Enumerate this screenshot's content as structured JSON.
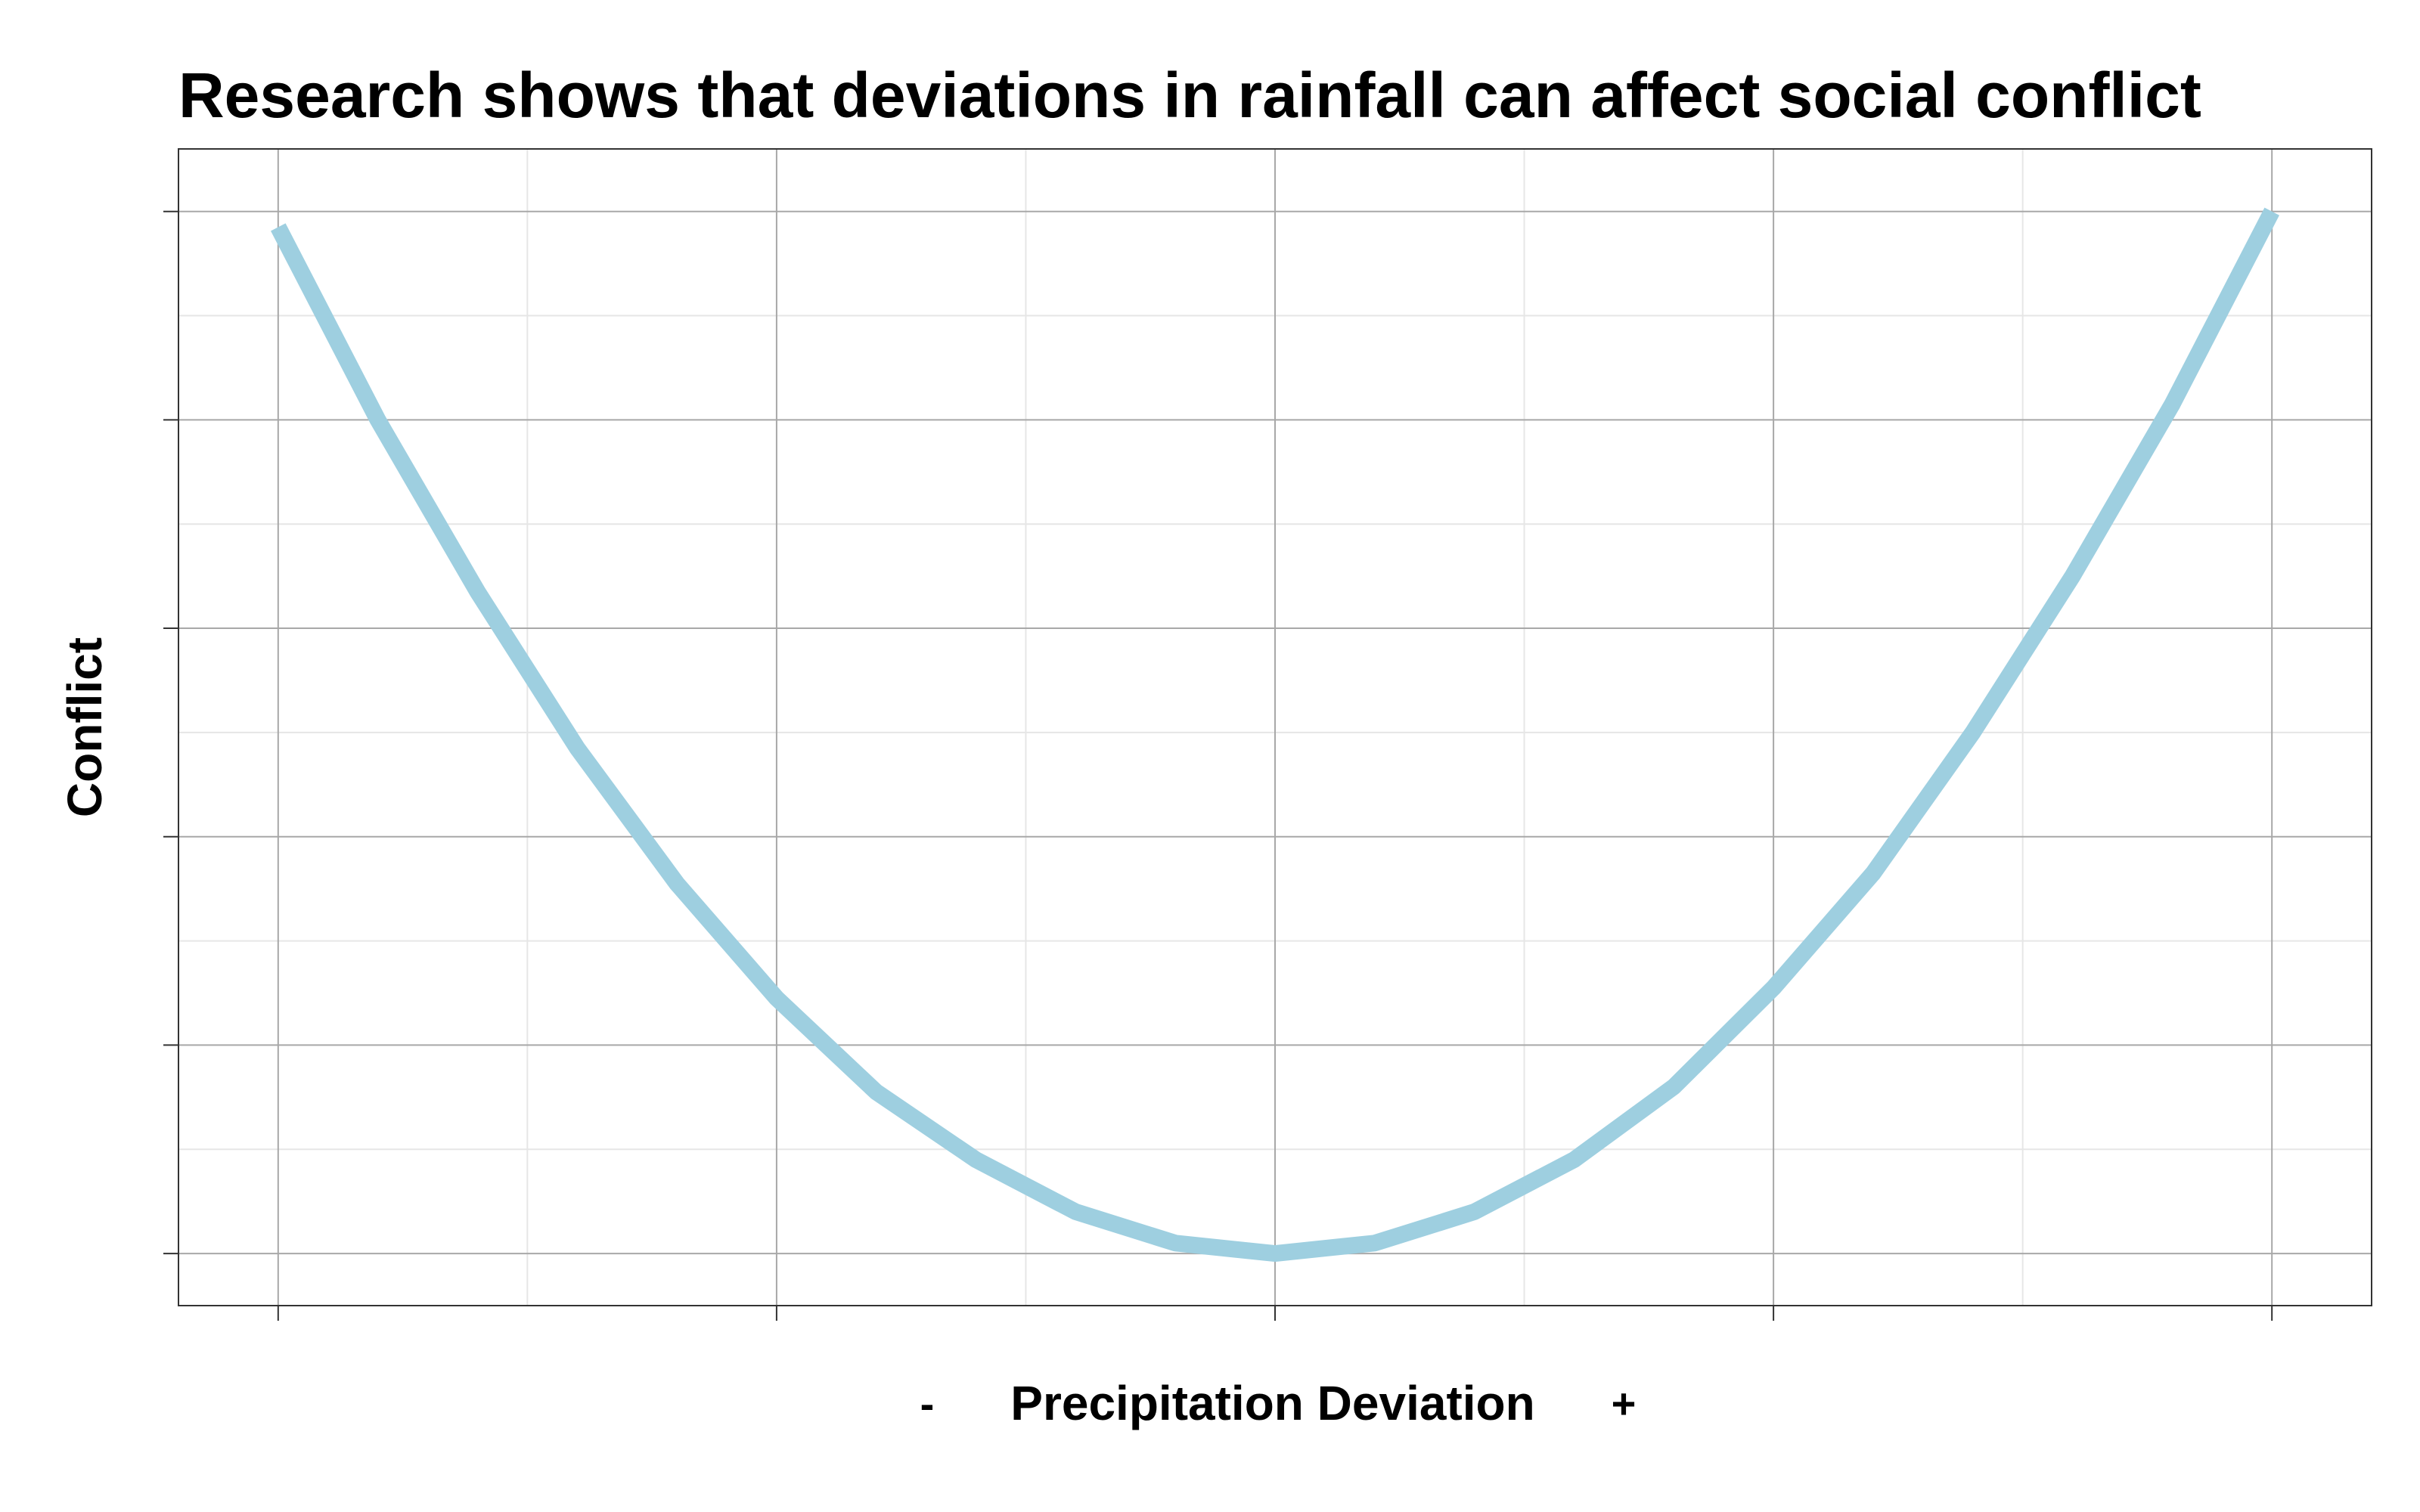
{
  "chart_data": {
    "type": "line",
    "title": "Research shows that deviations in rainfall can affect social conflict",
    "xlabel": "Precipitation Deviation",
    "x_sign_left": "-",
    "x_sign_right": "+",
    "ylabel": "Conflict",
    "xlim": [
      -1.1,
      1.1
    ],
    "ylim": [
      -0.05,
      1.06
    ],
    "x_ticks": [
      -1,
      -0.5,
      0,
      0.5,
      1
    ],
    "y_ticks": [
      0,
      0.2,
      0.4,
      0.6,
      0.8,
      1.0
    ],
    "tick_labels_shown": false,
    "grid": true,
    "series": [
      {
        "color": "#9ecfe0",
        "x": [
          -1.0,
          -0.9,
          -0.8,
          -0.7,
          -0.6,
          -0.5,
          -0.4,
          -0.3,
          -0.2,
          -0.1,
          0.0,
          0.1,
          0.2,
          0.3,
          0.4,
          0.5,
          0.6,
          0.7,
          0.8,
          0.9,
          1.0
        ],
        "y": [
          0.985,
          0.8,
          0.635,
          0.485,
          0.355,
          0.245,
          0.155,
          0.09,
          0.04,
          0.01,
          0.0,
          0.01,
          0.04,
          0.09,
          0.16,
          0.255,
          0.365,
          0.5,
          0.65,
          0.815,
          1.0
        ]
      }
    ]
  }
}
